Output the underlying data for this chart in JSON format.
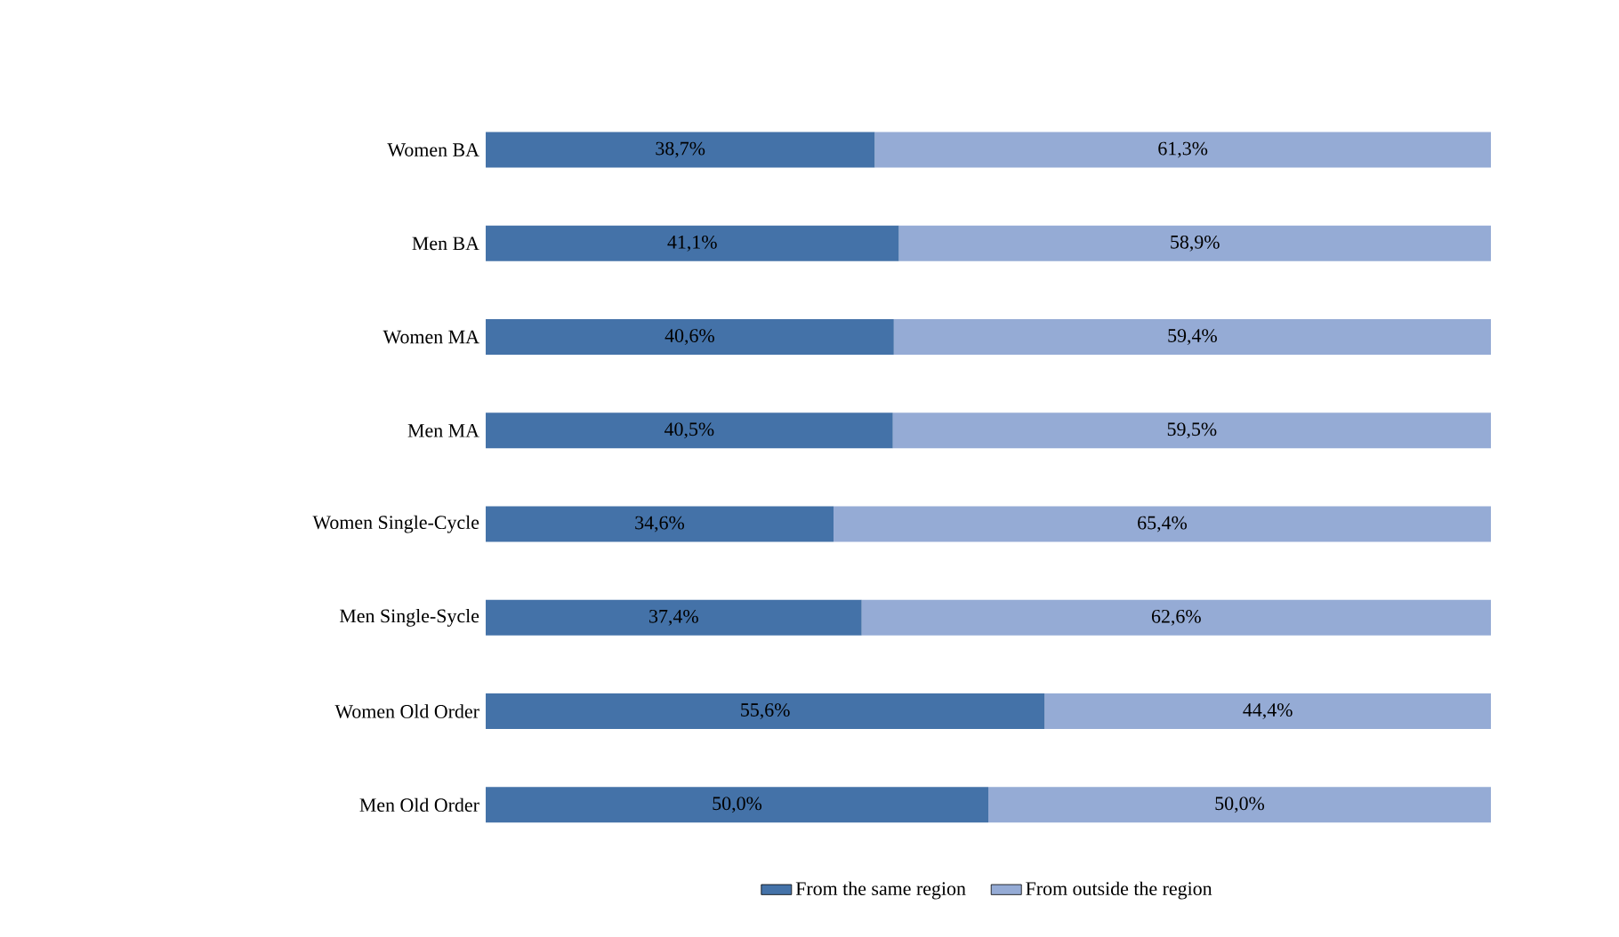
{
  "chart_data": {
    "type": "bar",
    "orientation": "horizontal",
    "stacked": true,
    "categories": [
      "Women BA",
      "Men BA",
      "Women MA",
      "Men MA",
      "Women Single-Cycle",
      "Men Single-Sycle",
      "Women Old Order",
      "Men Old Order"
    ],
    "series": [
      {
        "name": "From the same region",
        "color": "#4472a8",
        "values": [
          38.7,
          41.1,
          40.6,
          40.5,
          34.6,
          37.4,
          55.6,
          50.0
        ],
        "value_labels": [
          "38,7%",
          "41,1%",
          "40,6%",
          "40,5%",
          "34,6%",
          "37,4%",
          "55,6%",
          "50,0%"
        ]
      },
      {
        "name": "From outside the region",
        "color": "#95abd5",
        "values": [
          61.3,
          58.9,
          59.4,
          59.5,
          65.4,
          62.6,
          44.4,
          50.0
        ],
        "value_labels": [
          "61,3%",
          "58,9%",
          "59,4%",
          "59,5%",
          "65,4%",
          "62,6%",
          "44,4%",
          "50,0%"
        ]
      }
    ],
    "legend": "bottom"
  }
}
